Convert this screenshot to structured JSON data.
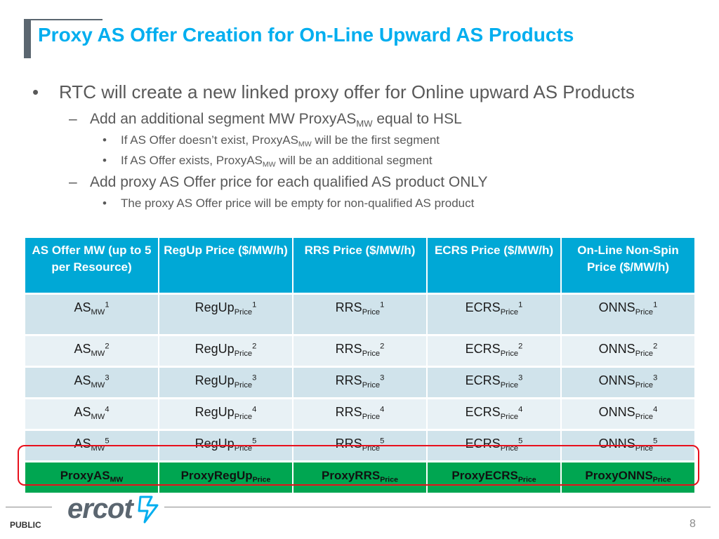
{
  "title": "Proxy AS Offer Creation for On-Line Upward AS Products",
  "bullets": {
    "main": "RTC will create a new linked proxy offer for Online upward AS Products",
    "sub1": {
      "pre": "Add an additional segment MW ProxyAS",
      "sub": "MW",
      "post": " equal to HSL"
    },
    "sub1a": {
      "pre": "If AS Offer doesn’t exist, ProxyAS",
      "sub": "MW",
      "post": " will be the first segment"
    },
    "sub1b": {
      "pre": "If AS Offer exists, ProxyAS",
      "sub": "MW",
      "post": " will be an additional segment"
    },
    "sub2": "Add proxy AS Offer price for each qualified AS product ONLY",
    "sub2a": "The proxy AS Offer price will be empty for non-qualified AS product"
  },
  "table": {
    "headers": [
      "AS Offer MW (up to 5 per Resource)",
      "RegUp Price ($/MW/h)",
      "RRS Price ($/MW/h)",
      "ECRS Price ($/MW/h)",
      "On-Line Non-Spin Price ($/MW/h)"
    ],
    "rows": [
      [
        {
          "base": "AS",
          "sub": "MW",
          "sup": "1"
        },
        {
          "base": "RegUp",
          "sub": "Price",
          "sup": "1"
        },
        {
          "base": "RRS",
          "sub": "Price",
          "sup": "1"
        },
        {
          "base": "ECRS",
          "sub": "Price",
          "sup": "1"
        },
        {
          "base": "ONNS",
          "sub": "Price",
          "sup": "1"
        }
      ],
      [
        {
          "base": "AS",
          "sub": "MW",
          "sup": "2"
        },
        {
          "base": "RegUp",
          "sub": "Price",
          "sup": "2"
        },
        {
          "base": "RRS",
          "sub": "Price",
          "sup": "2"
        },
        {
          "base": "ECRS",
          "sub": "Price",
          "sup": "2"
        },
        {
          "base": "ONNS",
          "sub": "Price",
          "sup": "2"
        }
      ],
      [
        {
          "base": "AS",
          "sub": "MW",
          "sup": "3"
        },
        {
          "base": "RegUp",
          "sub": "Price",
          "sup": "3"
        },
        {
          "base": "RRS",
          "sub": "Price",
          "sup": "3"
        },
        {
          "base": "ECRS",
          "sub": "Price",
          "sup": "3"
        },
        {
          "base": "ONNS",
          "sub": "Price",
          "sup": "3"
        }
      ],
      [
        {
          "base": "AS",
          "sub": "MW",
          "sup": "4"
        },
        {
          "base": "RegUp",
          "sub": "Price",
          "sup": "4"
        },
        {
          "base": "RRS",
          "sub": "Price",
          "sup": "4"
        },
        {
          "base": "ECRS",
          "sub": "Price",
          "sup": "4"
        },
        {
          "base": "ONNS",
          "sub": "Price",
          "sup": "4"
        }
      ],
      [
        {
          "base": "AS",
          "sub": "MW",
          "sup": "5"
        },
        {
          "base": "RegUp",
          "sub": "Price",
          "sup": "5"
        },
        {
          "base": "RRS",
          "sub": "Price",
          "sup": "5"
        },
        {
          "base": "ECRS",
          "sub": "Price",
          "sup": "5"
        },
        {
          "base": "ONNS",
          "sub": "Price",
          "sup": "5"
        }
      ]
    ],
    "proxy_row": [
      {
        "base": "ProxyAS",
        "sub": "MW"
      },
      {
        "base": "ProxyRegUp",
        "sub": "Price"
      },
      {
        "base": "ProxyRRS",
        "sub": "Price"
      },
      {
        "base": "ProxyECRS",
        "sub": "Price"
      },
      {
        "base": "ProxyONNS",
        "sub": "Price"
      }
    ]
  },
  "footer": {
    "logo_text": "ercot",
    "classification": "PUBLIC",
    "page_number": "8"
  },
  "colors": {
    "title": "#00aeef",
    "header": "#00a8d6",
    "proxy_row": "#00a651",
    "highlight_border": "#e8101c"
  }
}
